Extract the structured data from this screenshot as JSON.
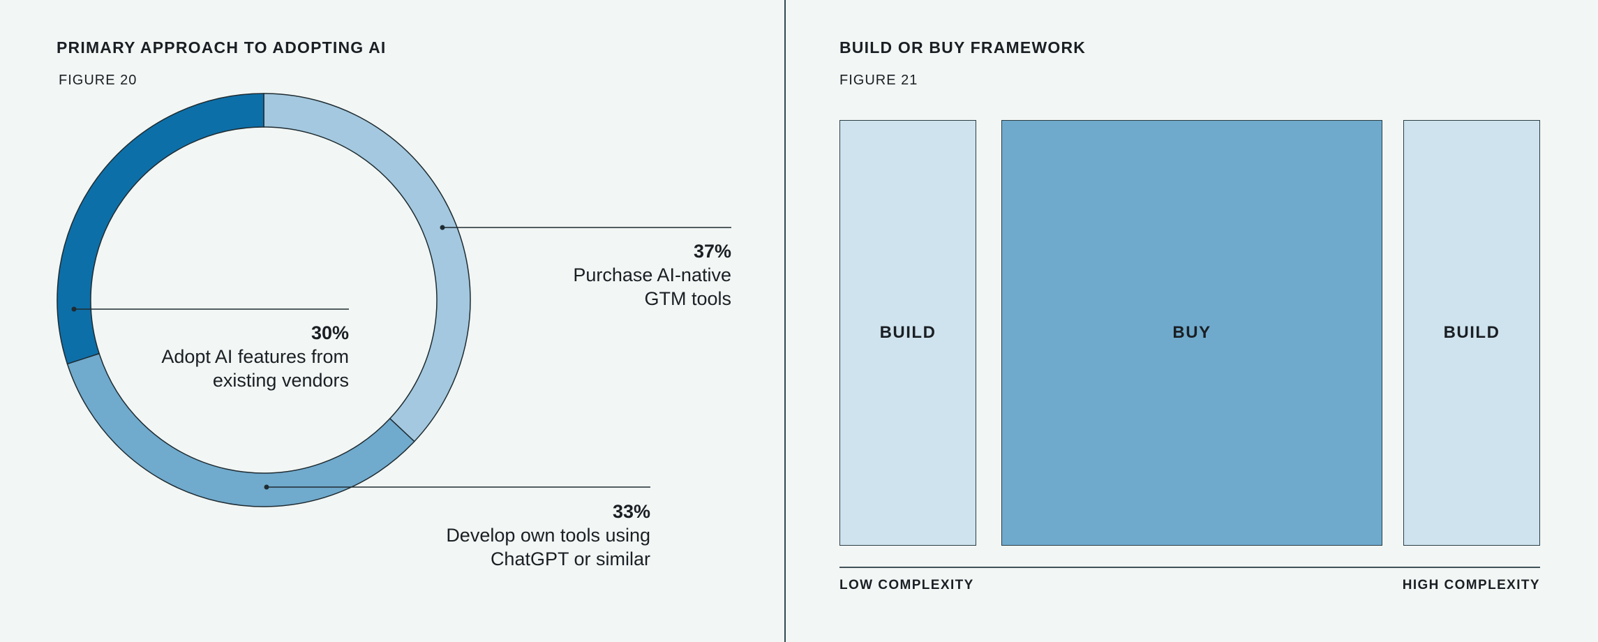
{
  "chart_data": [
    {
      "type": "pie",
      "title": "PRIMARY APPROACH TO ADOPTING AI",
      "figure_label": "FIGURE 20",
      "slices": [
        {
          "percent_label": "37%",
          "value": 37,
          "label": "Purchase AI-native GTM tools",
          "label_lines": [
            "Purchase AI-native",
            "GTM tools"
          ],
          "color": "#a3c8df"
        },
        {
          "percent_label": "33%",
          "value": 33,
          "label": "Develop own tools using ChatGPT or similar",
          "label_lines": [
            "Develop own tools using",
            "ChatGPT or similar"
          ],
          "color": "#70aacd"
        },
        {
          "percent_label": "30%",
          "value": 30,
          "label": "Adopt AI features from existing vendors",
          "label_lines": [
            "Adopt AI features from",
            "existing vendors"
          ],
          "color": "#0d6fa8"
        }
      ]
    },
    {
      "type": "diagram",
      "title": "BUILD OR BUY FRAMEWORK",
      "figure_label": "FIGURE 21",
      "segments": [
        {
          "label": "BUILD",
          "color": "#cfe3ee"
        },
        {
          "label": "BUY",
          "color": "#6faacd"
        },
        {
          "label": "BUILD",
          "color": "#cfe3ee"
        }
      ],
      "axis": {
        "low_label": "LOW COMPLEXITY",
        "high_label": "HIGH COMPLEXITY"
      }
    }
  ],
  "colors": {
    "background": "#f2f6f4",
    "divider": "#2f4a4f",
    "stroke": "#1e2b31"
  }
}
